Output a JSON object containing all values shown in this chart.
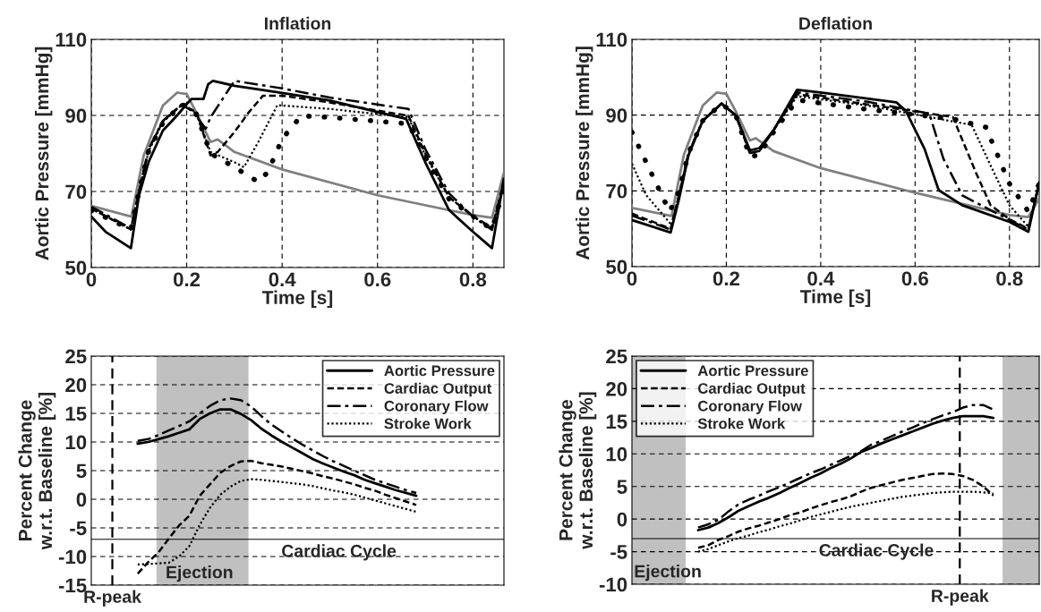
{
  "chart_data": [
    {
      "type": "line",
      "title": "Inflation",
      "xlabel": "Time [s]",
      "ylabel": "Aortic Pressure [mmHg]",
      "xlim": [
        0,
        0.865
      ],
      "xticks": [
        0,
        0.2,
        0.4,
        0.6,
        0.8
      ],
      "ylim": [
        50,
        110
      ],
      "yticks": [
        50,
        70,
        90,
        110
      ],
      "grid": true,
      "legend": false,
      "series": [
        {
          "color": "#808080",
          "line_style": "solid",
          "x": [
            0,
            0.084,
            0.11,
            0.15,
            0.18,
            0.2,
            0.22,
            0.25,
            0.265,
            0.3,
            0.4,
            0.6,
            0.8,
            0.84,
            0.865
          ],
          "values": [
            66.2,
            63.4,
            79.5,
            92.6,
            96,
            95.6,
            90.8,
            83,
            83.7,
            80.4,
            75.8,
            69,
            63.8,
            63.1,
            75
          ]
        },
        {
          "color": "#000000",
          "line_style": "solid",
          "x": [
            0,
            0.03,
            0.083,
            0.1,
            0.12,
            0.15,
            0.18,
            0.2,
            0.21,
            0.235,
            0.245,
            0.255,
            0.3,
            0.4,
            0.5,
            0.66,
            0.7,
            0.75,
            0.8,
            0.84,
            0.865
          ],
          "values": [
            63.4,
            59.4,
            55.1,
            69,
            77.7,
            86,
            90,
            93,
            94.3,
            94.3,
            98.2,
            99.1,
            97.8,
            95.9,
            93.9,
            89.1,
            77.7,
            65.1,
            59.4,
            55.1,
            73.4
          ]
        },
        {
          "color": "#000000",
          "line_style": "dashdot",
          "x": [
            0,
            0.083,
            0.1,
            0.12,
            0.15,
            0.19,
            0.21,
            0.24,
            0.25,
            0.3,
            0.4,
            0.5,
            0.665,
            0.7,
            0.75,
            0.8,
            0.84,
            0.865
          ],
          "values": [
            66,
            60.3,
            69.9,
            81.2,
            88.6,
            92.7,
            91.3,
            86.5,
            89.5,
            99.1,
            97.1,
            94.7,
            91.7,
            81.2,
            69.5,
            63.4,
            59.9,
            73
          ]
        },
        {
          "color": "#000000",
          "line_style": "dashed",
          "x": [
            0,
            0.083,
            0.1,
            0.12,
            0.15,
            0.19,
            0.22,
            0.25,
            0.265,
            0.3,
            0.33,
            0.36,
            0.4,
            0.5,
            0.665,
            0.7,
            0.75,
            0.8,
            0.84,
            0.865
          ],
          "values": [
            65.5,
            60,
            70,
            81,
            88.5,
            93,
            90.8,
            79.5,
            80.4,
            85.6,
            90.8,
            95.2,
            95.2,
            93.4,
            89.9,
            80,
            68.5,
            63.5,
            60.5,
            72
          ]
        },
        {
          "color": "#000000",
          "line_style": "dotted",
          "x": [
            0,
            0.083,
            0.1,
            0.12,
            0.15,
            0.19,
            0.22,
            0.25,
            0.3,
            0.32,
            0.35,
            0.39,
            0.5,
            0.665,
            0.7,
            0.75,
            0.8,
            0.84,
            0.865
          ],
          "values": [
            65.5,
            60,
            70,
            80.5,
            88.3,
            92.8,
            90.5,
            80.4,
            77.7,
            76.4,
            83,
            92.7,
            91.7,
            89.5,
            79.5,
            68.5,
            63.5,
            60,
            72
          ]
        },
        {
          "color": "#000000",
          "line_style": "dots",
          "x": [
            0,
            0.083,
            0.1,
            0.12,
            0.15,
            0.19,
            0.22,
            0.25,
            0.3,
            0.35,
            0.37,
            0.4,
            0.44,
            0.5,
            0.665,
            0.7,
            0.75,
            0.8,
            0.84,
            0.865
          ],
          "values": [
            65,
            60,
            70,
            80.5,
            88,
            93,
            90.5,
            80,
            76.4,
            72.5,
            75.1,
            83.8,
            89.9,
            89.5,
            87.8,
            79,
            68,
            63.5,
            60,
            71
          ]
        }
      ]
    },
    {
      "type": "line",
      "title": "Deflation",
      "xlabel": "Time [s]",
      "ylabel": "Aortic Pressure [mmHg]",
      "xlim": [
        0,
        0.863
      ],
      "xticks": [
        0,
        0.2,
        0.4,
        0.6,
        0.8
      ],
      "ylim": [
        50,
        110
      ],
      "yticks": [
        50,
        70,
        90,
        110
      ],
      "grid": true,
      "legend": false,
      "series": [
        {
          "color": "#808080",
          "line_style": "solid",
          "x": [
            0,
            0.084,
            0.11,
            0.15,
            0.18,
            0.2,
            0.22,
            0.25,
            0.262,
            0.3,
            0.4,
            0.6,
            0.8,
            0.84,
            0.863
          ],
          "values": [
            65.5,
            63.4,
            79.5,
            92.5,
            96,
            95.6,
            91,
            83.3,
            83.9,
            80.5,
            76,
            69.5,
            63.6,
            63.1,
            68
          ]
        },
        {
          "color": "#000000",
          "line_style": "solid",
          "x": [
            0,
            0.082,
            0.1,
            0.12,
            0.15,
            0.19,
            0.22,
            0.25,
            0.27,
            0.3,
            0.35,
            0.4,
            0.56,
            0.58,
            0.62,
            0.65,
            0.7,
            0.8,
            0.84,
            0.863
          ],
          "values": [
            62.3,
            59,
            68,
            79.5,
            88.5,
            93.1,
            89.9,
            80.7,
            81.3,
            86,
            96.7,
            96,
            93.4,
            91.2,
            81.1,
            70.2,
            66.2,
            61.8,
            59.2,
            72.3
          ]
        },
        {
          "color": "#000000",
          "line_style": "dashdot",
          "x": [
            0,
            0.082,
            0.1,
            0.12,
            0.15,
            0.19,
            0.22,
            0.25,
            0.27,
            0.3,
            0.35,
            0.5,
            0.63,
            0.66,
            0.7,
            0.8,
            0.84,
            0.863
          ],
          "values": [
            63.5,
            59.8,
            69,
            80,
            88.5,
            93,
            90,
            80,
            80.5,
            86,
            96,
            93.5,
            90.4,
            78.5,
            68.8,
            62.3,
            59.8,
            72
          ]
        },
        {
          "color": "#000000",
          "line_style": "dashed",
          "x": [
            0,
            0.082,
            0.1,
            0.12,
            0.15,
            0.19,
            0.22,
            0.25,
            0.27,
            0.3,
            0.35,
            0.5,
            0.68,
            0.73,
            0.76,
            0.8,
            0.84,
            0.863
          ],
          "values": [
            64,
            60,
            69,
            80,
            88.5,
            93,
            90,
            80,
            80.5,
            86,
            95.5,
            92.8,
            89.5,
            74.5,
            66.2,
            62.5,
            60,
            72
          ]
        },
        {
          "color": "#000000",
          "line_style": "dotted",
          "x": [
            0,
            0.03,
            0.06,
            0.084,
            0.1,
            0.12,
            0.15,
            0.19,
            0.22,
            0.25,
            0.27,
            0.3,
            0.35,
            0.5,
            0.72,
            0.76,
            0.8,
            0.84,
            0.863
          ],
          "values": [
            77.2,
            68.9,
            64.5,
            61,
            69,
            80,
            88.5,
            93,
            90,
            80,
            80.5,
            86,
            95,
            92.5,
            87.4,
            76.7,
            66.2,
            60.5,
            72
          ]
        },
        {
          "color": "#000000",
          "line_style": "dots",
          "x": [
            0,
            0.03,
            0.06,
            0.08,
            0.1,
            0.12,
            0.15,
            0.19,
            0.22,
            0.25,
            0.27,
            0.3,
            0.35,
            0.5,
            0.68,
            0.75,
            0.8,
            0.84,
            0.863
          ],
          "values": [
            85.5,
            77.6,
            69.7,
            64.5,
            70,
            80,
            88.5,
            93,
            90,
            79,
            79.5,
            85.5,
            94,
            91.5,
            89,
            86.8,
            71.9,
            64.5,
            72
          ]
        }
      ]
    },
    {
      "type": "line",
      "ylabel": "Percent Change\nw.r.t. Baseline [%]",
      "ylim": [
        -15,
        25
      ],
      "yticks": [
        -15,
        -10,
        -5,
        0,
        5,
        10,
        15,
        20,
        25
      ],
      "grid": "y",
      "legend": "top right",
      "tick_labels": "y",
      "categories": [
        null,
        null,
        null,
        null,
        null,
        null,
        null,
        null,
        null,
        null,
        null,
        null,
        null,
        null,
        null,
        null,
        null,
        null,
        null,
        null,
        null,
        null,
        null,
        null,
        null,
        null,
        null,
        null,
        null,
        null,
        null,
        null,
        null,
        null,
        null,
        null,
        null,
        null,
        null,
        null
      ],
      "ref_lines": [
        {
          "axis": "y",
          "value": -7,
          "label": "Cardiac Cycle",
          "line_style": "solid",
          "color": "#000000"
        }
      ],
      "annotations": [
        "R-peak",
        "Ejection"
      ],
      "series": [
        {
          "name": "Aortic Pressure",
          "color": "#000000",
          "line_style": "solid",
          "values": [
            null,
            null,
            null,
            null,
            9.7,
            10.0,
            10.5,
            11.0,
            11.6,
            12.2,
            14.0,
            15.0,
            15.7,
            15.7,
            14.9,
            13.8,
            12.3,
            11.1,
            10.0,
            9.0,
            8.0,
            7.0,
            6.2,
            5.5,
            4.8,
            4.2,
            3.4,
            2.8,
            2.2,
            1.6,
            1.1,
            0.6,
            null,
            null,
            null,
            null,
            null,
            null,
            null,
            null
          ]
        },
        {
          "name": "Cardiac Output",
          "color": "#000000",
          "line_style": "dashed",
          "values": [
            null,
            null,
            null,
            null,
            -13,
            -11,
            -9.3,
            -6.9,
            -4.6,
            -2.9,
            0.6,
            2.6,
            4.6,
            5.8,
            6.6,
            6.7,
            6.3,
            6.0,
            5.7,
            5.3,
            4.9,
            4.5,
            4.0,
            3.6,
            3.1,
            2.6,
            2.0,
            1.5,
            0.8,
            0.2,
            -0.4,
            -1.0,
            null,
            null,
            null,
            null,
            null,
            null,
            null,
            null
          ]
        },
        {
          "name": "Coronary Flow",
          "color": "#000000",
          "line_style": "dashdot",
          "values": [
            null,
            null,
            null,
            null,
            10.2,
            10.5,
            11.2,
            12.0,
            12.8,
            13.6,
            15.0,
            16.3,
            17.3,
            17.6,
            17.3,
            16.2,
            14.5,
            13.0,
            11.8,
            10.6,
            9.5,
            8.5,
            7.5,
            6.6,
            5.8,
            5.0,
            4.2,
            3.4,
            2.8,
            2.2,
            1.6,
            1.1,
            null,
            null,
            null,
            null,
            null,
            null,
            null,
            null
          ]
        },
        {
          "name": "Stroke Work",
          "color": "#000000",
          "line_style": "dotted",
          "values": [
            null,
            null,
            null,
            null,
            -11.4,
            -11.3,
            -11.2,
            -11.1,
            -10.0,
            -8.2,
            -4.5,
            -1.5,
            0.8,
            2.2,
            3.2,
            3.5,
            3.4,
            3.2,
            3.0,
            2.8,
            2.6,
            2.3,
            1.9,
            1.5,
            1.2,
            0.8,
            0.3,
            -0.2,
            -0.7,
            -1.2,
            -1.7,
            -2.2,
            null,
            null,
            null,
            null,
            null,
            null,
            null,
            null
          ]
        }
      ]
    },
    {
      "type": "line",
      "ylabel": "Percent Change\nw.r.t. Baseline [%]",
      "ylim": [
        -10,
        25
      ],
      "yticks": [
        -10,
        -5,
        0,
        5,
        10,
        15,
        20,
        25
      ],
      "grid": "y",
      "legend": "top left",
      "tick_labels": "y",
      "categories": [
        null,
        null,
        null,
        null,
        null,
        null,
        null,
        null,
        null,
        null,
        null,
        null,
        null,
        null,
        null,
        null,
        null,
        null,
        null,
        null,
        null,
        null,
        null,
        null,
        null,
        null,
        null,
        null,
        null,
        null,
        null,
        null,
        null,
        null,
        null,
        null,
        null,
        null,
        null,
        null
      ],
      "ref_lines": [
        {
          "axis": "y",
          "value": -3,
          "label": "Cardiac Cycle",
          "line_style": "solid",
          "color": "#000000"
        }
      ],
      "annotations": [
        "R-peak",
        "Ejection"
      ],
      "series": [
        {
          "name": "Aortic Pressure",
          "color": "#000000",
          "line_style": "solid",
          "values": [
            null,
            null,
            null,
            null,
            null,
            null,
            -1.7,
            -1.3,
            -0.6,
            0.3,
            1.3,
            2.0,
            2.7,
            3.3,
            4.0,
            4.8,
            5.5,
            6.3,
            7.0,
            7.8,
            8.5,
            9.3,
            10.3,
            10.9,
            11.6,
            12.2,
            12.8,
            13.4,
            14.0,
            14.6,
            15.1,
            15.5,
            15.8,
            15.8,
            15.8,
            15.5,
            null,
            null,
            null,
            null
          ]
        },
        {
          "name": "Cardiac Output",
          "color": "#000000",
          "line_style": "dashed",
          "values": [
            null,
            null,
            null,
            null,
            null,
            null,
            -4.4,
            -4.0,
            -3.2,
            -2.6,
            -1.9,
            -1.4,
            -1.0,
            -0.5,
            0.0,
            0.6,
            1.0,
            1.6,
            2.1,
            2.6,
            3.0,
            3.5,
            4.2,
            4.8,
            5.2,
            5.6,
            6.0,
            6.3,
            6.6,
            6.9,
            7.0,
            6.9,
            6.6,
            6.0,
            5.0,
            3.6,
            null,
            null,
            null,
            null
          ]
        },
        {
          "name": "Coronary Flow",
          "color": "#000000",
          "line_style": "dashdot",
          "values": [
            null,
            null,
            null,
            null,
            null,
            null,
            -1.3,
            -0.8,
            -0.1,
            1.2,
            2.3,
            3.0,
            3.6,
            4.3,
            4.9,
            5.6,
            6.3,
            7.0,
            7.6,
            8.3,
            9.0,
            9.7,
            10.4,
            11.4,
            12.0,
            12.7,
            13.4,
            14.0,
            14.7,
            15.3,
            15.9,
            16.4,
            17.1,
            17.5,
            17.5,
            16.8,
            null,
            null,
            null,
            null
          ]
        },
        {
          "name": "Stroke Work",
          "color": "#000000",
          "line_style": "dotted",
          "values": [
            null,
            null,
            null,
            null,
            null,
            null,
            -5.0,
            -4.6,
            -4.0,
            -3.4,
            -2.9,
            -2.5,
            -2.0,
            -1.6,
            -1.1,
            -0.7,
            -0.2,
            0.3,
            0.7,
            1.1,
            1.5,
            1.9,
            2.2,
            2.5,
            2.8,
            3.1,
            3.4,
            3.6,
            3.8,
            4.0,
            4.1,
            4.2,
            4.2,
            4.2,
            4.1,
            3.9,
            null,
            null,
            null,
            null
          ]
        }
      ]
    }
  ]
}
